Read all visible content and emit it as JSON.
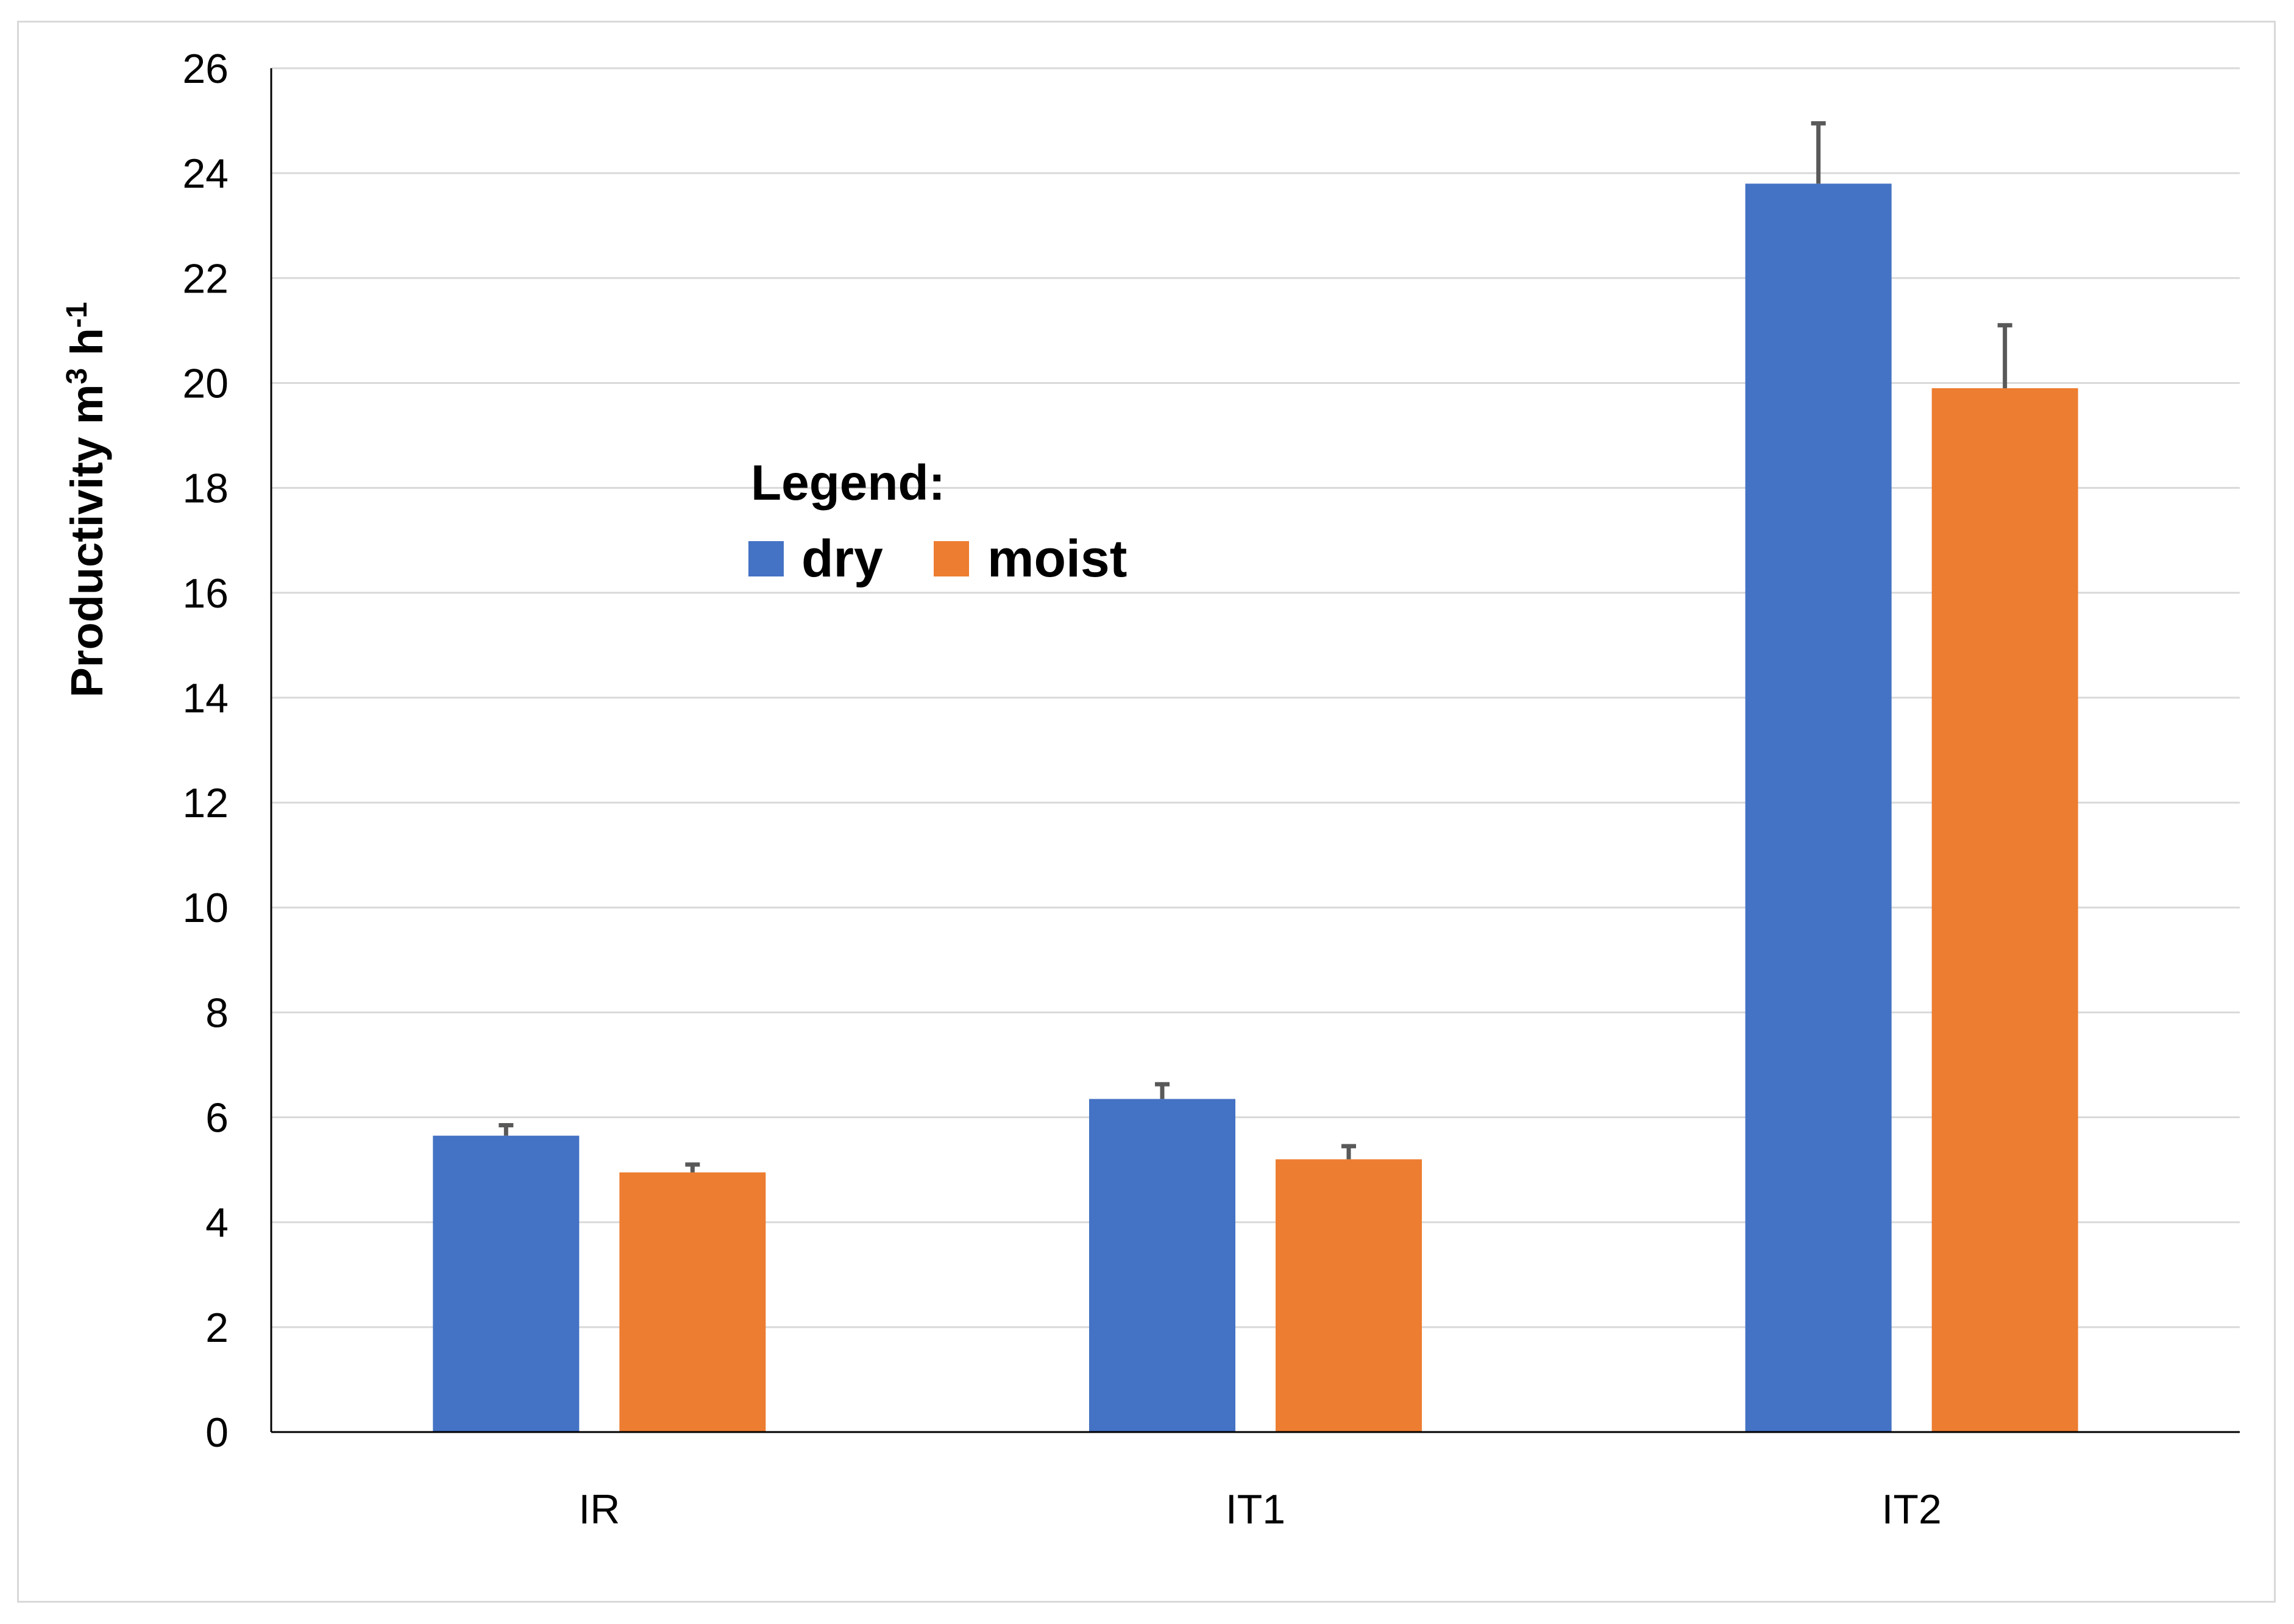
{
  "chart_data": {
    "type": "bar",
    "categories": [
      "IR",
      "IT1",
      "IT2"
    ],
    "series": [
      {
        "name": "dry",
        "color": "#4472C4",
        "values": [
          5.65,
          6.35,
          23.8
        ],
        "error": [
          0.2,
          0.28,
          1.15
        ]
      },
      {
        "name": "moist",
        "color": "#ED7D31",
        "values": [
          4.95,
          5.2,
          19.9
        ],
        "error": [
          0.15,
          0.25,
          1.2
        ]
      }
    ],
    "ylabel": {
      "main": "Productivity m",
      "sup1": "3",
      "mid": " h",
      "sup2": "-1"
    },
    "ylim": [
      0,
      26
    ],
    "yticks": [
      "0",
      "2",
      "4",
      "6",
      "8",
      "10",
      "12",
      "14",
      "16",
      "18",
      "20",
      "22",
      "24",
      "26"
    ],
    "grid": true,
    "legend": {
      "title": "Legend:",
      "placement": "upper-left-inside"
    }
  }
}
